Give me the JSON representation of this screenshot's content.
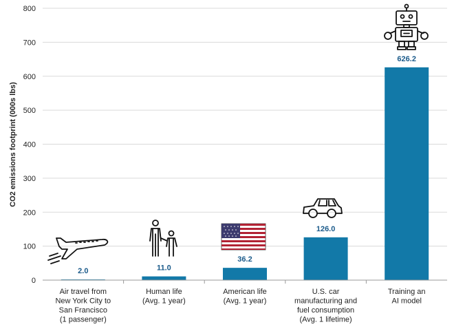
{
  "chart_data": {
    "type": "bar",
    "title": "",
    "xlabel": "",
    "ylabel": "CO2 emissions footprint (000s lbs)",
    "ylim": [
      0,
      800
    ],
    "yticks": [
      0,
      100,
      200,
      300,
      400,
      500,
      600,
      700,
      800
    ],
    "categories": [
      [
        "Air travel from",
        "New York City to",
        "San Francisco",
        "(1 passenger)"
      ],
      [
        "Human life",
        "(Avg. 1 year)"
      ],
      [
        "American life",
        "(Avg. 1 year)"
      ],
      [
        "U.S. car",
        "manufacturing and",
        "fuel consumption",
        "(Avg. 1 lifetime)"
      ],
      [
        "Training an",
        "AI model"
      ]
    ],
    "values": [
      2.0,
      11.0,
      36.2,
      126.0,
      626.2
    ],
    "value_labels": [
      "2.0",
      "11.0",
      "36.2",
      "126.0",
      "626.2"
    ],
    "icons": [
      "airplane-icon",
      "people-icon",
      "us-flag-icon",
      "car-icon",
      "robot-icon"
    ],
    "grid": true,
    "colors": {
      "bar": "#1279a8",
      "label": "#1a5a8a",
      "grid": "#d9d9d9",
      "axis": "#999999"
    }
  }
}
